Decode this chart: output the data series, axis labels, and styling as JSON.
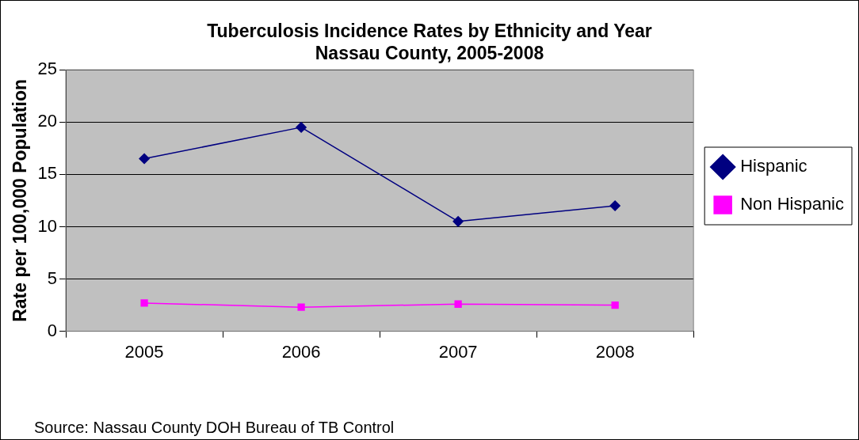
{
  "chart_data": {
    "type": "line",
    "title": [
      "Tuberculosis Incidence Rates by Ethnicity and Year",
      "Nassau County, 2005-2008"
    ],
    "ylabel": "Rate per 100,000 Population",
    "categories": [
      "2005",
      "2006",
      "2007",
      "2008"
    ],
    "series": [
      {
        "name": "Hispanic",
        "color": "#000080",
        "marker": "diamond",
        "values": [
          16.5,
          19.5,
          10.5,
          12
        ]
      },
      {
        "name": "Non Hispanic",
        "color": "#ff00ff",
        "marker": "square",
        "values": [
          2.7,
          2.3,
          2.6,
          2.5
        ]
      }
    ],
    "ylim": [
      0,
      25
    ],
    "yticks": [
      0,
      5,
      10,
      15,
      20,
      25
    ],
    "grid": "y",
    "legend": "right",
    "line_style": "solid",
    "annotations": [
      "Source: Nassau County DOH Bureau of TB Control"
    ]
  }
}
